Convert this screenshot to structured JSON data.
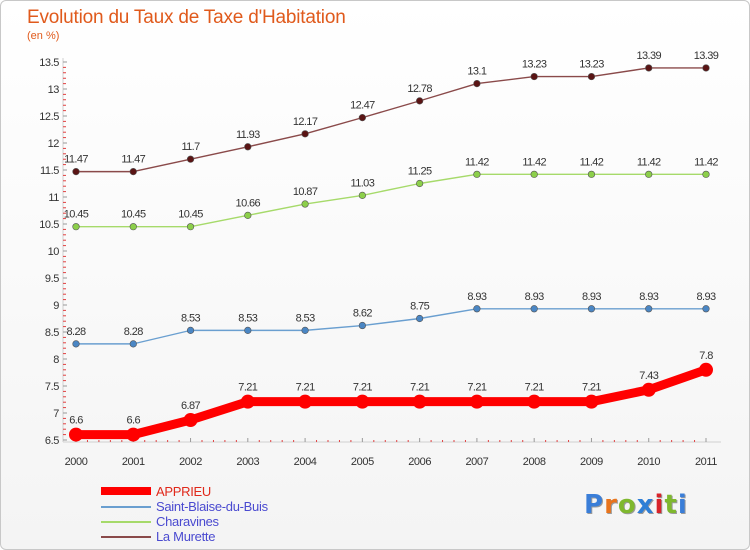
{
  "title": "Evolution du Taux de Taxe d'Habitation",
  "subtitle": "(en %)",
  "brand": {
    "text": "Proxiti",
    "letter_colors": [
      "#3a7ed8",
      "#e8741c",
      "#7fb82e",
      "#2f7fd6",
      "#d8232a",
      "#7fb82e",
      "#3a7ed8"
    ]
  },
  "chart_data": {
    "type": "line",
    "title": "Evolution du Taux de Taxe d'Habitation",
    "ylabel": "(en %)",
    "xlabel": "",
    "x": [
      "2000",
      "2001",
      "2002",
      "2003",
      "2004",
      "2005",
      "2006",
      "2007",
      "2008",
      "2009",
      "2010",
      "2011"
    ],
    "ylim": [
      6.5,
      13.5
    ],
    "yticks": [
      "6.5",
      "7",
      "7.5",
      "8",
      "8.5",
      "9",
      "9.5",
      "10",
      "10.5",
      "11",
      "11.5",
      "12",
      "12.5",
      "13",
      "13.5"
    ],
    "grid": false,
    "legend": "bottom-left",
    "series": [
      {
        "name": "APPRIEU",
        "color": "#ff0000",
        "marker_color": "#ff0000",
        "emphasis": true,
        "values": [
          6.6,
          6.6,
          6.87,
          7.21,
          7.21,
          7.21,
          7.21,
          7.21,
          7.21,
          7.21,
          7.43,
          7.8
        ],
        "labels": [
          "6.6",
          "6.6",
          "6.87",
          "7.21",
          "7.21",
          "7.21",
          "7.21",
          "7.21",
          "7.21",
          "7.21",
          "7.43",
          "7.8"
        ]
      },
      {
        "name": "Saint-Blaise-du-Buis",
        "color": "#6a9fd0",
        "marker_color": "#4a86c4",
        "emphasis": false,
        "values": [
          8.28,
          8.28,
          8.53,
          8.53,
          8.53,
          8.62,
          8.75,
          8.93,
          8.93,
          8.93,
          8.93,
          8.93
        ],
        "labels": [
          "8.28",
          "8.28",
          "8.53",
          "8.53",
          "8.53",
          "8.62",
          "8.75",
          "8.93",
          "8.93",
          "8.93",
          "8.93",
          "8.93"
        ]
      },
      {
        "name": "Charavines",
        "color": "#a6da6a",
        "marker_color": "#8ccf4a",
        "emphasis": false,
        "values": [
          10.45,
          10.45,
          10.45,
          10.66,
          10.87,
          11.03,
          11.25,
          11.42,
          11.42,
          11.42,
          11.42,
          11.42
        ],
        "labels": [
          "10.45",
          "10.45",
          "10.45",
          "10.66",
          "10.87",
          "11.03",
          "11.25",
          "11.42",
          "11.42",
          "11.42",
          "11.42",
          "11.42"
        ]
      },
      {
        "name": "La Murette",
        "color": "#8a4a4a",
        "marker_color": "#5a1414",
        "emphasis": false,
        "values": [
          11.47,
          11.47,
          11.7,
          11.93,
          12.17,
          12.47,
          12.78,
          13.1,
          13.23,
          13.23,
          13.39,
          13.39
        ],
        "labels": [
          "11.47",
          "11.47",
          "11.7",
          "11.93",
          "12.17",
          "12.47",
          "12.78",
          "13.1",
          "13.23",
          "13.23",
          "13.39",
          "13.39"
        ]
      }
    ]
  }
}
